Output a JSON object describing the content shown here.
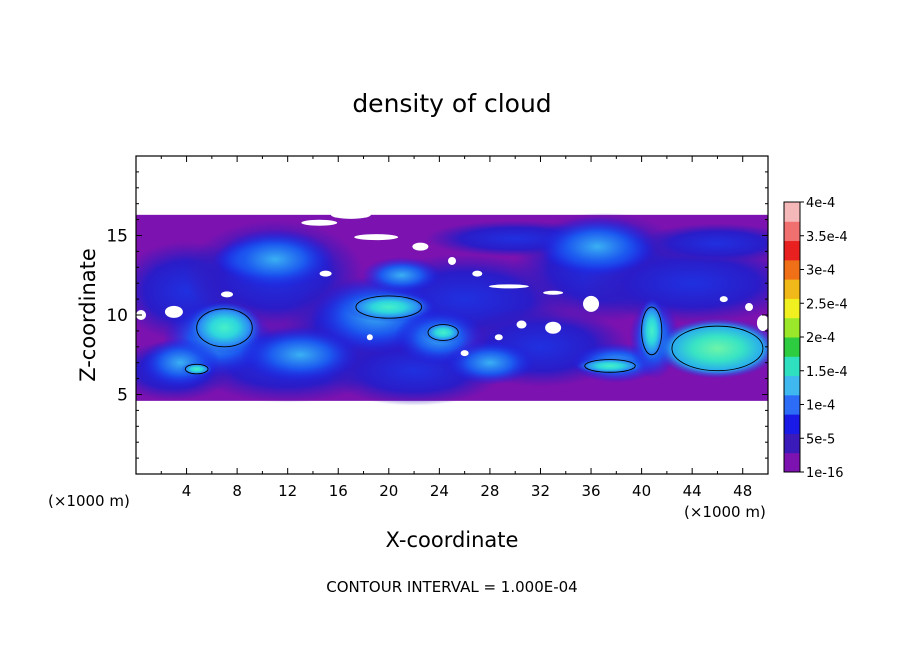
{
  "chart_data": {
    "type": "heatmap",
    "title": "density of cloud",
    "xlabel": "X-coordinate",
    "ylabel": "Z-coordinate",
    "x_unit": "(×1000 m)",
    "z_unit": "(×1000 m)",
    "footer": "CONTOUR INTERVAL = 1.000E-04",
    "xlim": [
      0,
      50
    ],
    "ylim": [
      0,
      20
    ],
    "x_ticks": [
      4,
      8,
      12,
      16,
      20,
      24,
      28,
      32,
      36,
      40,
      44,
      48
    ],
    "y_ticks": [
      5,
      10,
      15
    ],
    "colorbar": {
      "labels": [
        "1e-16",
        "5e-5",
        "1e-4",
        "1.5e-4",
        "2e-4",
        "2.5e-4",
        "3e-4",
        "3.5e-4",
        "4e-4"
      ],
      "values": [
        0,
        5e-05,
        0.0001,
        0.00015,
        0.0002,
        0.00025,
        0.0003,
        0.00035,
        0.0004
      ],
      "colors": [
        "#7c12b0",
        "#3a1ab8",
        "#1a1ae6",
        "#2c6cf6",
        "#3eb8ee",
        "#2ee0c0",
        "#2ecc40",
        "#9be82a",
        "#f0f020",
        "#f0b818",
        "#f07018",
        "#e82020",
        "#f07070",
        "#f4b8b8"
      ]
    },
    "cloud_layer": {
      "z_bottom": 4.6,
      "z_top": 16.3,
      "x_start": 0,
      "x_end": 50
    },
    "cells": [
      {
        "x": 7,
        "z": 9.2,
        "rx": 2.2,
        "rz": 1.2,
        "value": 0.00014
      },
      {
        "x": 4.8,
        "z": 6.6,
        "rx": 0.9,
        "rz": 0.3,
        "value": 0.000105
      },
      {
        "x": 20,
        "z": 10.5,
        "rx": 2.6,
        "rz": 0.7,
        "value": 0.00011
      },
      {
        "x": 24.3,
        "z": 8.9,
        "rx": 1.2,
        "rz": 0.5,
        "value": 0.000105
      },
      {
        "x": 37.5,
        "z": 6.8,
        "rx": 2.0,
        "rz": 0.4,
        "value": 0.000105
      },
      {
        "x": 40.8,
        "z": 9.0,
        "rx": 0.8,
        "rz": 1.5,
        "value": 0.00011
      },
      {
        "x": 46,
        "z": 7.9,
        "rx": 3.6,
        "rz": 1.4,
        "value": 0.00017
      },
      {
        "x": 36.5,
        "z": 14.3,
        "rx": 3.5,
        "rz": 1.4,
        "value": 6e-05
      },
      {
        "x": 11,
        "z": 13.5,
        "rx": 3.5,
        "rz": 1.4,
        "value": 5e-05
      }
    ]
  }
}
